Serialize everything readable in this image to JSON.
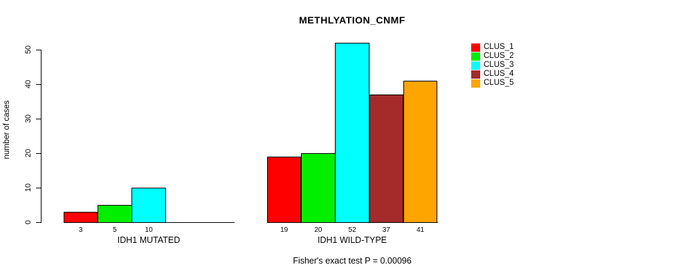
{
  "title": "METHLYATION_CNMF",
  "footnote": "Fisher's exact test P = 0.00096",
  "chart_data": {
    "type": "bar",
    "title": "METHLYATION_CNMF",
    "xlabel": "",
    "ylabel": "number of cases",
    "ylim": [
      0,
      52
    ],
    "yticks": [
      0,
      10,
      20,
      30,
      40,
      50
    ],
    "grid": false,
    "legend_position": "right",
    "categories": [
      "IDH1 MUTATED",
      "IDH1 WILD-TYPE"
    ],
    "series": [
      {
        "name": "CLUS_1",
        "color": "#ff0000",
        "values": [
          3,
          19
        ]
      },
      {
        "name": "CLUS_2",
        "color": "#00ee00",
        "values": [
          5,
          20
        ]
      },
      {
        "name": "CLUS_3",
        "color": "#00ffff",
        "values": [
          10,
          52
        ]
      },
      {
        "name": "CLUS_4",
        "color": "#a52a2a",
        "values": [
          0,
          37
        ]
      },
      {
        "name": "CLUS_5",
        "color": "#ffa500",
        "values": [
          0,
          41
        ]
      }
    ],
    "bar_value_labels": [
      [
        "3",
        "5",
        "10",
        "",
        ""
      ],
      [
        "19",
        "20",
        "52",
        "37",
        "41"
      ]
    ],
    "annotation": "Fisher's exact test P = 0.00096"
  }
}
